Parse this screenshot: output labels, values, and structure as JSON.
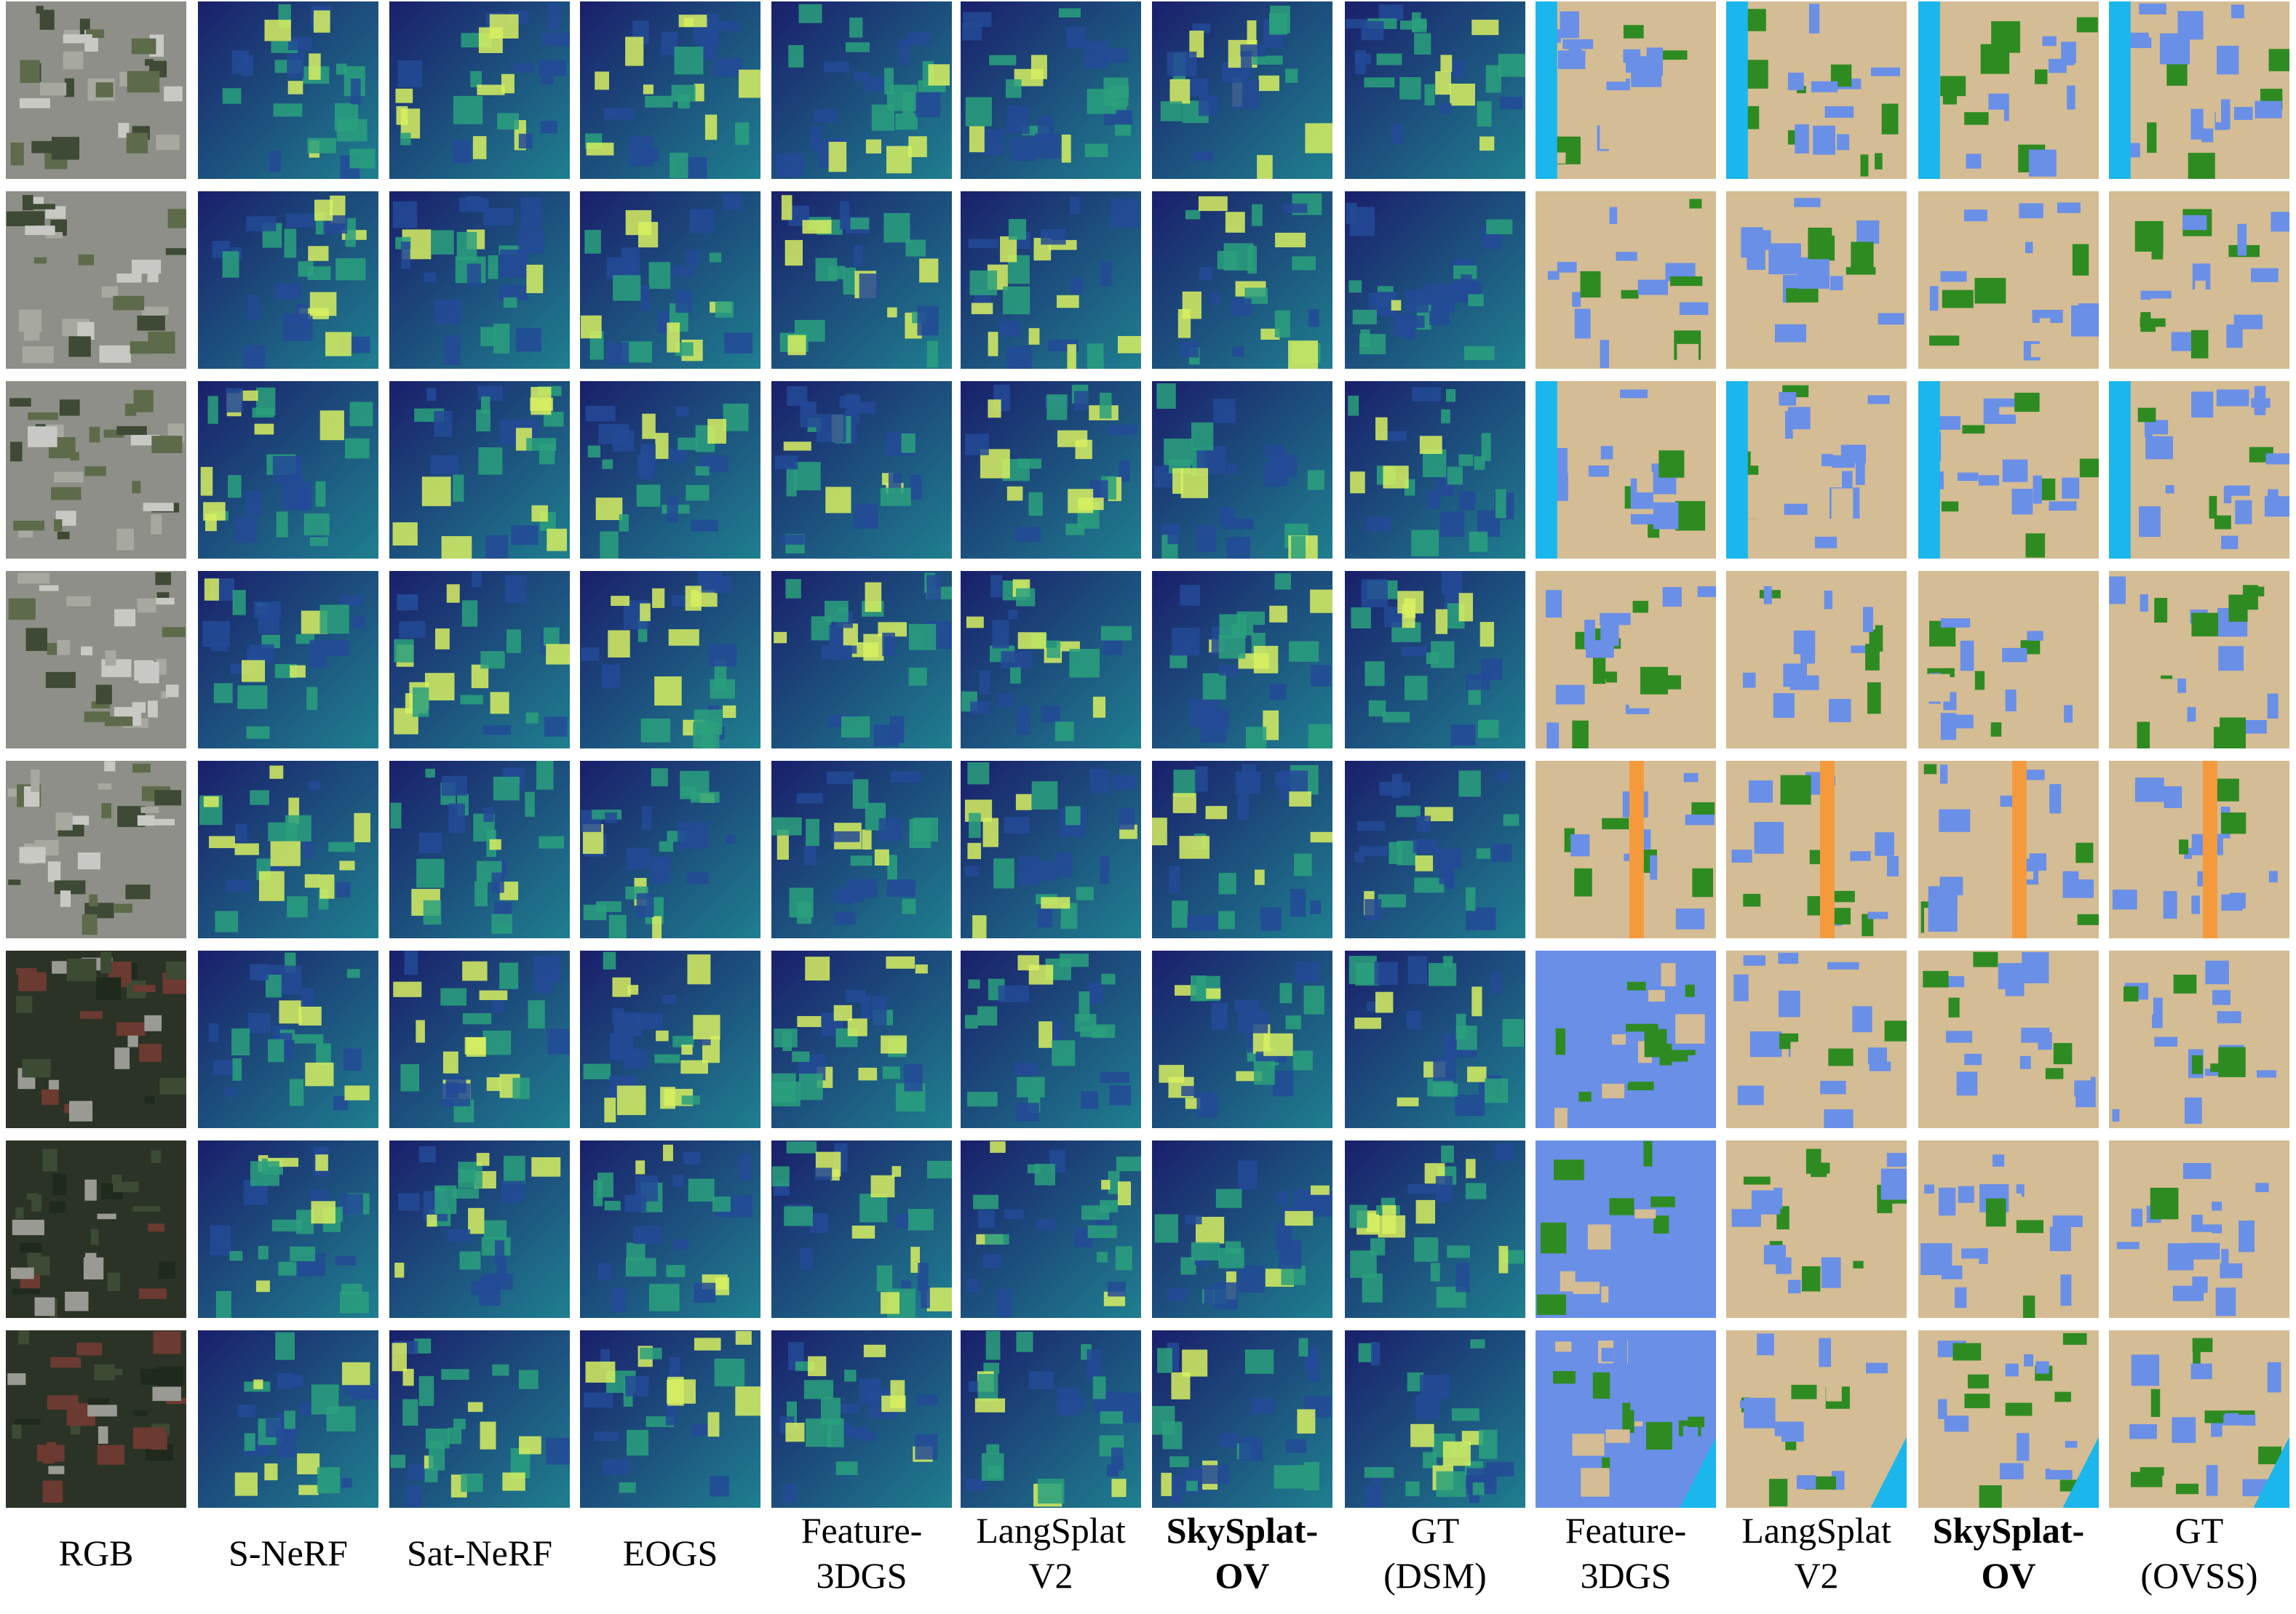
{
  "columns": [
    {
      "lines": [
        "RGB"
      ],
      "bold": false,
      "type": "rgb"
    },
    {
      "lines": [
        "S-NeRF"
      ],
      "bold": false,
      "type": "dsm"
    },
    {
      "lines": [
        "Sat-NeRF"
      ],
      "bold": false,
      "type": "dsm"
    },
    {
      "lines": [
        "EOGS"
      ],
      "bold": false,
      "type": "dsm"
    },
    {
      "lines": [
        "Feature-",
        "3DGS"
      ],
      "bold": false,
      "type": "dsm"
    },
    {
      "lines": [
        "LangSplat",
        "V2"
      ],
      "bold": false,
      "type": "dsm"
    },
    {
      "lines": [
        "SkySplat-",
        "OV"
      ],
      "bold": true,
      "type": "dsm"
    },
    {
      "lines": [
        "GT",
        "(DSM)"
      ],
      "bold": false,
      "type": "dsm"
    },
    {
      "lines": [
        "Feature-",
        "3DGS"
      ],
      "bold": false,
      "type": "seg"
    },
    {
      "lines": [
        "LangSplat",
        "V2"
      ],
      "bold": false,
      "type": "seg"
    },
    {
      "lines": [
        "SkySplat-",
        "OV"
      ],
      "bold": true,
      "type": "seg"
    },
    {
      "lines": [
        "GT",
        "(OVSS)"
      ],
      "bold": false,
      "type": "seg"
    }
  ],
  "row_count": 8,
  "colors": {
    "dsm_low": "#1a1f6b",
    "dsm_mid": "#1f7f8f",
    "dsm_high": "#d8f060",
    "seg_ground": "#d4bc94",
    "seg_building": "#6a8fe6",
    "seg_tree": "#2e8b22",
    "seg_water": "#1ab6ec",
    "seg_road": "#f49a3c",
    "rgb_gray": "#8d8f88",
    "rgb_green": "#4a5a3a"
  }
}
